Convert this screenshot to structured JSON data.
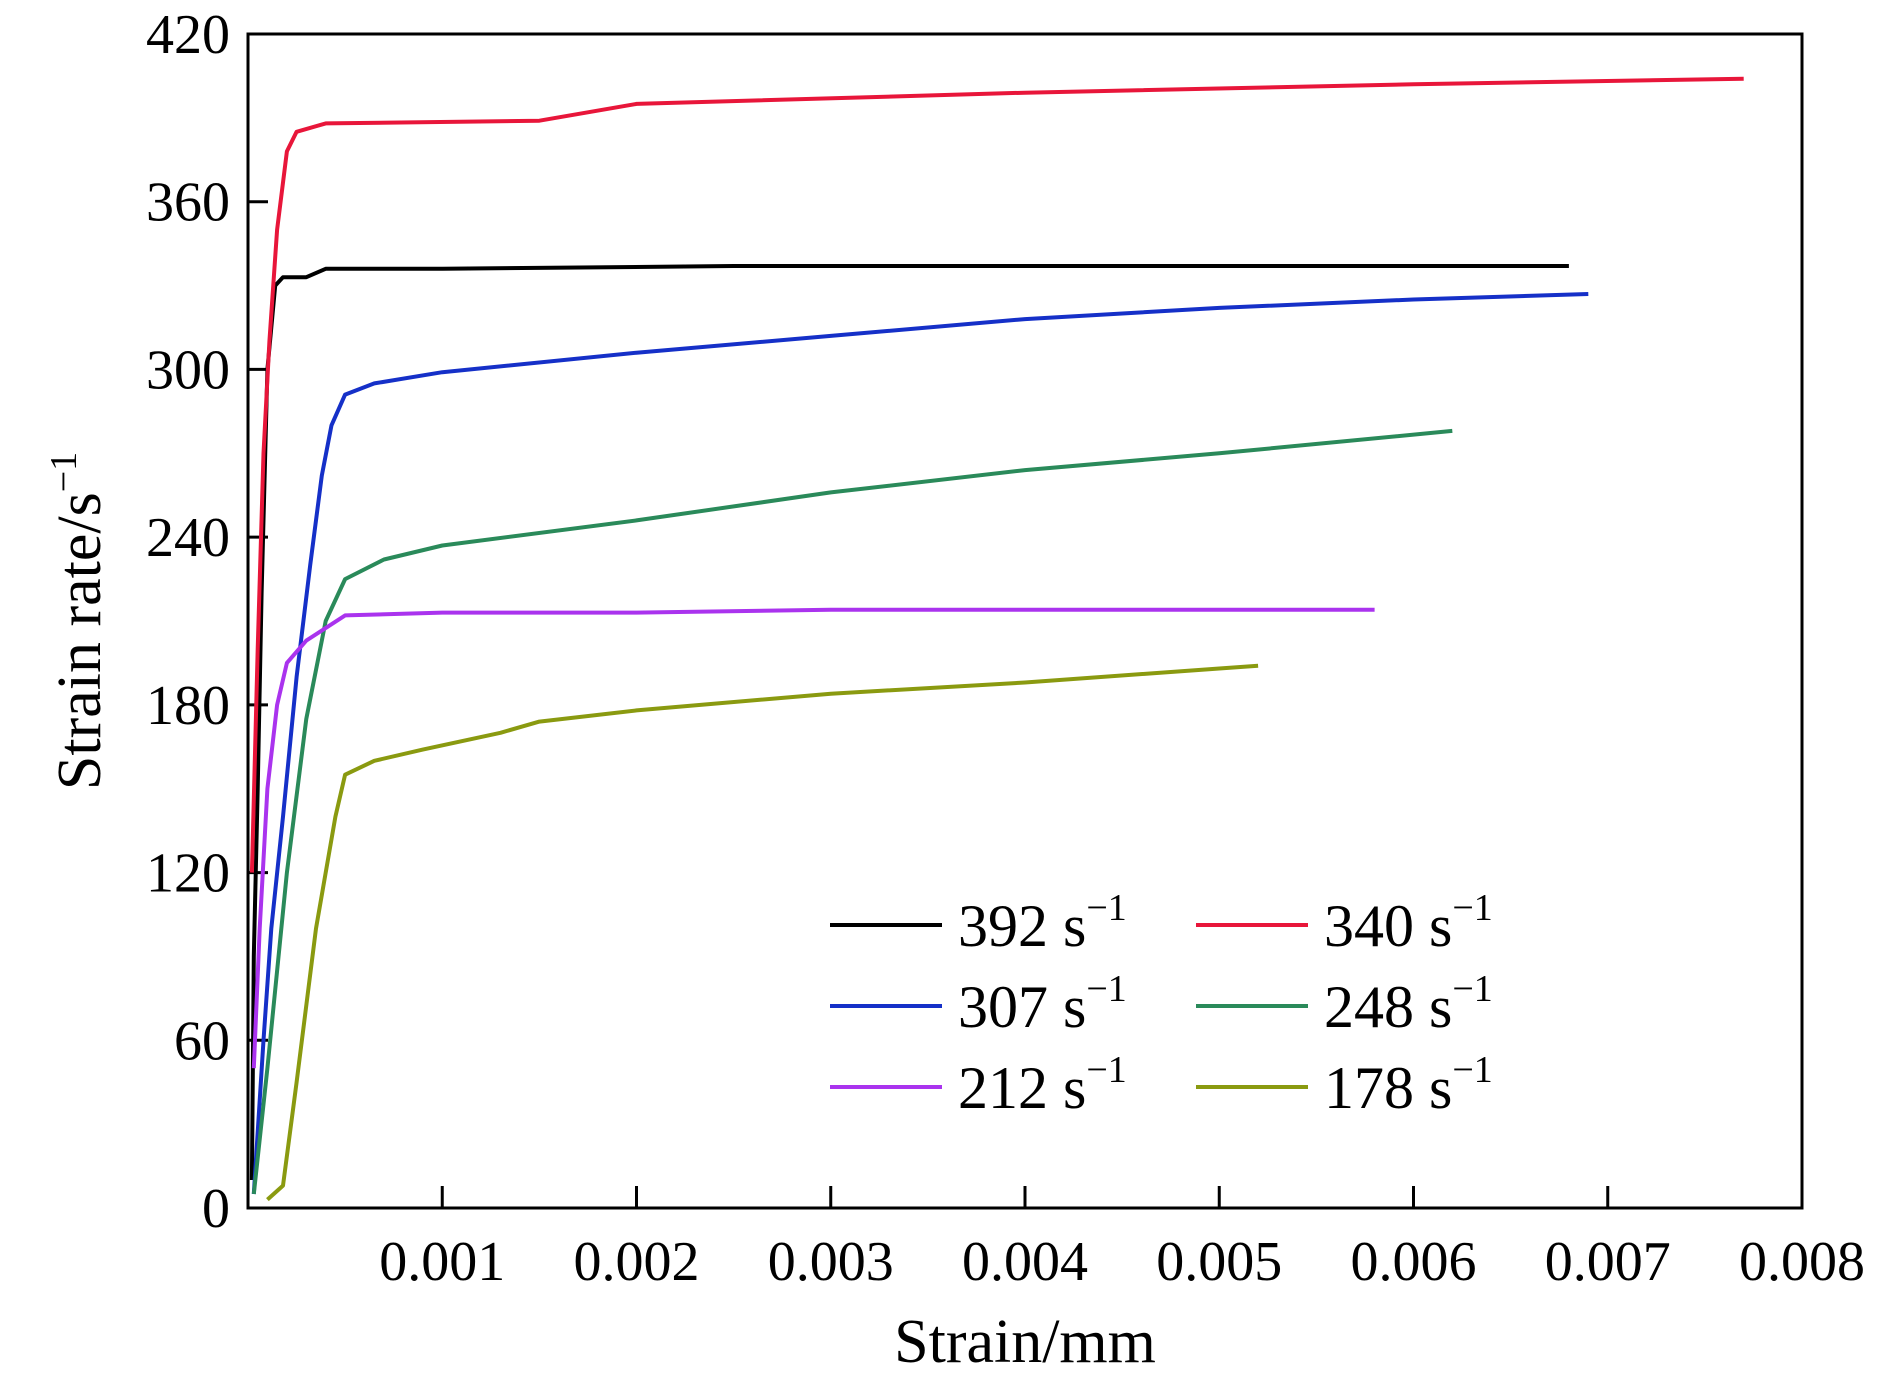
{
  "chart_data": {
    "type": "line",
    "xlabel": "Strain/mm",
    "ylabel": {
      "base": "Strain rate/s",
      "sup": "−1"
    },
    "xlim": [
      0,
      0.008
    ],
    "ylim": [
      0,
      420
    ],
    "xticks": [
      {
        "v": 0.001,
        "label": "0.001"
      },
      {
        "v": 0.002,
        "label": "0.002"
      },
      {
        "v": 0.003,
        "label": "0.003"
      },
      {
        "v": 0.004,
        "label": "0.004"
      },
      {
        "v": 0.005,
        "label": "0.005"
      },
      {
        "v": 0.006,
        "label": "0.006"
      },
      {
        "v": 0.007,
        "label": "0.007"
      },
      {
        "v": 0.008,
        "label": "0.008"
      }
    ],
    "yticks": [
      {
        "v": 0,
        "label": "0"
      },
      {
        "v": 60,
        "label": "60"
      },
      {
        "v": 120,
        "label": "120"
      },
      {
        "v": 180,
        "label": "180"
      },
      {
        "v": 240,
        "label": "240"
      },
      {
        "v": 300,
        "label": "300"
      },
      {
        "v": 360,
        "label": "360"
      },
      {
        "v": 420,
        "label": "420"
      }
    ],
    "grid": false,
    "legend_position": "bottom-right",
    "series": [
      {
        "name": "392 s",
        "sup": "−1",
        "color": "#000000",
        "points": [
          [
            2e-05,
            10
          ],
          [
            3e-05,
            90
          ],
          [
            5e-05,
            150
          ],
          [
            7e-05,
            220
          ],
          [
            0.0001,
            300
          ],
          [
            0.00014,
            330
          ],
          [
            0.00018,
            333
          ],
          [
            0.0003,
            333
          ],
          [
            0.0004,
            336
          ],
          [
            0.001,
            336
          ],
          [
            0.0025,
            337
          ],
          [
            0.004,
            337
          ],
          [
            0.0068,
            337
          ]
        ]
      },
      {
        "name": "340 s",
        "sup": "−1",
        "color": "#e8163a",
        "points": [
          [
            2e-05,
            120
          ],
          [
            5e-05,
            200
          ],
          [
            8e-05,
            270
          ],
          [
            0.00011,
            310
          ],
          [
            0.00015,
            350
          ],
          [
            0.0002,
            378
          ],
          [
            0.00025,
            385
          ],
          [
            0.0004,
            388
          ],
          [
            0.0015,
            389
          ],
          [
            0.002,
            395
          ],
          [
            0.004,
            399
          ],
          [
            0.006,
            402
          ],
          [
            0.0077,
            404
          ]
        ]
      },
      {
        "name": "307 s",
        "sup": "−1",
        "color": "#1530c8",
        "points": [
          [
            3e-05,
            5
          ],
          [
            8e-05,
            60
          ],
          [
            0.00012,
            100
          ],
          [
            0.00018,
            140
          ],
          [
            0.00025,
            190
          ],
          [
            0.00032,
            230
          ],
          [
            0.00038,
            262
          ],
          [
            0.00043,
            280
          ],
          [
            0.0005,
            291
          ],
          [
            0.00065,
            295
          ],
          [
            0.001,
            299
          ],
          [
            0.002,
            306
          ],
          [
            0.003,
            312
          ],
          [
            0.004,
            318
          ],
          [
            0.005,
            322
          ],
          [
            0.006,
            325
          ],
          [
            0.0069,
            327
          ]
        ]
      },
      {
        "name": "248 s",
        "sup": "−1",
        "color": "#2a8a5a",
        "points": [
          [
            3e-05,
            5
          ],
          [
            0.0001,
            50
          ],
          [
            0.0002,
            120
          ],
          [
            0.0003,
            175
          ],
          [
            0.0004,
            210
          ],
          [
            0.0005,
            225
          ],
          [
            0.0007,
            232
          ],
          [
            0.001,
            237
          ],
          [
            0.002,
            246
          ],
          [
            0.003,
            256
          ],
          [
            0.004,
            264
          ],
          [
            0.005,
            270
          ],
          [
            0.0062,
            278
          ]
        ]
      },
      {
        "name": "212 s",
        "sup": "−1",
        "color": "#aa33ee",
        "points": [
          [
            3e-05,
            50
          ],
          [
            6e-05,
            100
          ],
          [
            0.0001,
            150
          ],
          [
            0.00015,
            180
          ],
          [
            0.0002,
            195
          ],
          [
            0.0003,
            203
          ],
          [
            0.0005,
            212
          ],
          [
            0.001,
            213
          ],
          [
            0.002,
            213
          ],
          [
            0.003,
            214
          ],
          [
            0.005,
            214
          ],
          [
            0.0058,
            214
          ]
        ]
      },
      {
        "name": "178 s",
        "sup": "−1",
        "color": "#8a9a10",
        "points": [
          [
            0.0001,
            3
          ],
          [
            0.00018,
            8
          ],
          [
            0.00025,
            45
          ],
          [
            0.00035,
            100
          ],
          [
            0.00045,
            140
          ],
          [
            0.0005,
            155
          ],
          [
            0.00065,
            160
          ],
          [
            0.0009,
            164
          ],
          [
            0.0013,
            170
          ],
          [
            0.0015,
            174
          ],
          [
            0.002,
            178
          ],
          [
            0.003,
            184
          ],
          [
            0.004,
            188
          ],
          [
            0.005,
            193
          ],
          [
            0.0052,
            194
          ]
        ]
      }
    ]
  }
}
